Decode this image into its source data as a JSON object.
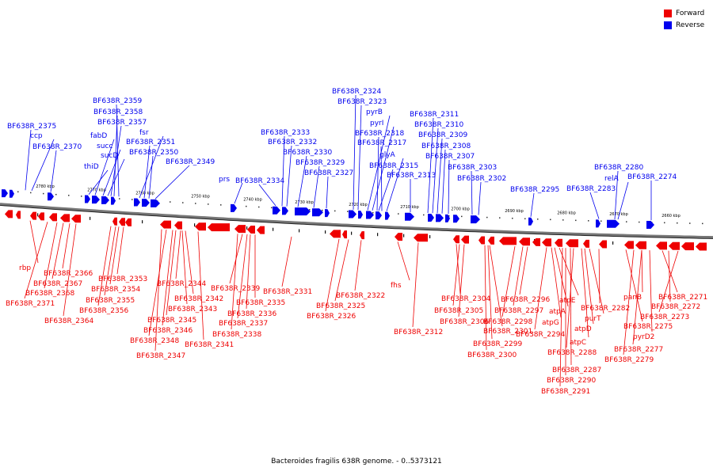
{
  "legend": [
    {
      "label": "Forward",
      "color": "#ee0000"
    },
    {
      "label": "Reverse",
      "color": "#0000ee"
    }
  ],
  "caption": "Bacteroides fragilis 638R genome. - 0..5373121",
  "colors": {
    "forward": "#ee0000",
    "reverse": "#0000ee",
    "backbone": "#444444"
  },
  "ticks": [
    "2780 kbp",
    "2770 kbp",
    "2760 kbp",
    "2750 kbp",
    "2740 kbp",
    "2730 kbp",
    "2720 kbp",
    "2710 kbp",
    "2700 kbp",
    "2690 kbp",
    "2680 kbp",
    "2670 kbp",
    "2660 kbp"
  ],
  "genes_reverse": [
    "BF638R_2375",
    "ccp",
    "BF638R_2370",
    "thiD",
    "fabD",
    "succ",
    "sucD",
    "BF638R_2357",
    "BF638R_2358",
    "BF638R_2359",
    "fsr",
    "BF638R_2351",
    "BF638R_2350",
    "BF638R_2349",
    "prs",
    "BF638R_2334",
    "BF638R_2333",
    "BF638R_2332",
    "BF638R_2330",
    "BF638R_2329",
    "BF638R_2327",
    "BF638R_2324",
    "BF638R_2323",
    "pyrB",
    "pyrI",
    "BF638R_2318",
    "BF638R_2317",
    "glyA",
    "BF638R_2315",
    "BF638R_2313",
    "BF638R_2311",
    "BF638R_2310",
    "BF638R_2309",
    "BF638R_2308",
    "BF638R_2307",
    "BF638R_2303",
    "BF638R_2302",
    "BF638R_2295",
    "BF638R_2283",
    "BF638R_2280",
    "relA",
    "BF638R_2274"
  ],
  "genes_forward": [
    "rbp",
    "BF638R_2366",
    "BF638R_2367",
    "BF638R_2368",
    "BF638R_2371",
    "BF638R_2364",
    "BF638R_2353",
    "BF638R_2354",
    "BF638R_2355",
    "BF638R_2356",
    "BF638R_2344",
    "BF638R_2345",
    "BF638R_2346",
    "BF638R_2348",
    "BF638R_2347",
    "BF638R_2342",
    "BF638R_2343",
    "BF638R_2341",
    "BF638R_2339",
    "BF638R_2335",
    "BF638R_2336",
    "BF638R_2337",
    "BF638R_2338",
    "BF638R_2331",
    "BF638R_2322",
    "BF638R_2325",
    "BF638R_2326",
    "fhs",
    "BF638R_2312",
    "BF638R_2304",
    "BF638R_2305",
    "BF638R_2306",
    "BF638R_2301",
    "BF638R_2299",
    "BF638R_2300",
    "BF638R_2296",
    "BF638R_2297",
    "BF638R_2298",
    "BF638R_2294",
    "atpE",
    "atpA",
    "atpG",
    "BF638R_2288",
    "BF638R_2287",
    "BF638R_2290",
    "BF638R_2291",
    "atpC",
    "atpD",
    "purT",
    "BF638R_2282",
    "BF638R_2275",
    "BF638R_2277",
    "BF638R_2279",
    "panB",
    "pyrD2",
    "BF638R_2271",
    "BF638R_2272",
    "BF638R_2273"
  ]
}
